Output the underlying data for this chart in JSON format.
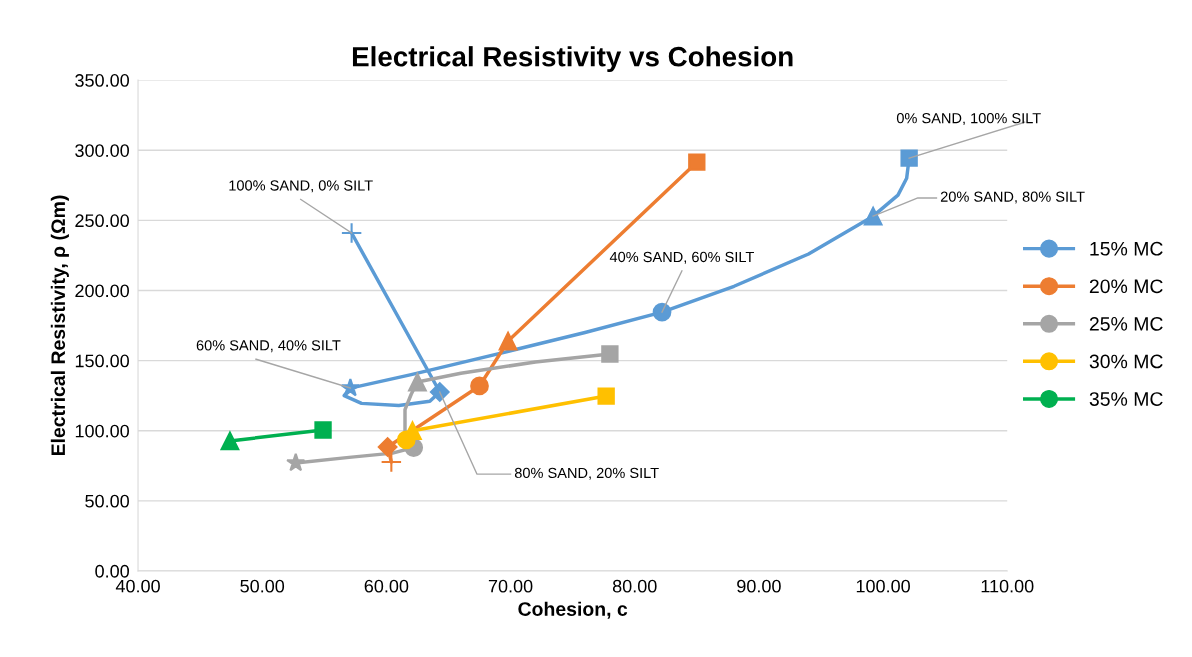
{
  "chart_data": {
    "type": "line",
    "title": "Electrical Resistivity vs Cohesion",
    "xlabel": "Cohesion, c",
    "ylabel": "Electrical Resistivity, ρ (Ωm)",
    "xlim": [
      40,
      110
    ],
    "xticks": [
      {
        "value": 40,
        "label": "40.00"
      },
      {
        "value": 50,
        "label": "50.00"
      },
      {
        "value": 60,
        "label": "60.00"
      },
      {
        "value": 70,
        "label": "70.00"
      },
      {
        "value": 80,
        "label": "80.00"
      },
      {
        "value": 90,
        "label": "90.00"
      },
      {
        "value": 100,
        "label": "100.00"
      },
      {
        "value": 110,
        "label": "110.00"
      }
    ],
    "ylim": [
      0,
      350
    ],
    "yticks": [
      {
        "value": 0,
        "label": "0.00"
      },
      {
        "value": 50,
        "label": "50.00"
      },
      {
        "value": 100,
        "label": "100.00"
      },
      {
        "value": 150,
        "label": "150.00"
      },
      {
        "value": 200,
        "label": "200.00"
      },
      {
        "value": 250,
        "label": "250.00"
      },
      {
        "value": 300,
        "label": "300.00"
      },
      {
        "value": 350,
        "label": "350.00"
      }
    ],
    "grid": "y",
    "legend": "right",
    "line_style": "solid",
    "series": [
      {
        "name": "15% MC",
        "color": "#5b9bd5",
        "marker": "none",
        "x": [
          57.2,
          64.3,
          63.5,
          61,
          58,
          56.6,
          57.1,
          62,
          70,
          76,
          82.2,
          88,
          94,
          99.2,
          101.2,
          101.9,
          102.1
        ],
        "values": [
          241,
          127.6,
          121,
          118,
          119.5,
          125,
          130.4,
          140,
          157,
          170,
          184.6,
          203,
          226,
          253,
          268,
          280,
          294.4
        ]
      },
      {
        "name": "20% MC",
        "color": "#ed7d31",
        "marker": "none",
        "x": [
          60.4,
          60.1,
          67.5,
          69.8,
          85.0
        ],
        "values": [
          77.7,
          88.4,
          131.9,
          163.9,
          291.5
        ]
      },
      {
        "name": "25% MC",
        "color": "#a5a5a5",
        "marker": "none",
        "x": [
          52.7,
          57,
          60.5,
          62.2,
          61.5,
          61.5,
          62,
          62.5,
          66,
          72,
          78.0
        ],
        "values": [
          77,
          81,
          84,
          88,
          100,
          115,
          126,
          134.7,
          141,
          149,
          154.7
        ]
      },
      {
        "name": "30% MC",
        "color": "#ffc000",
        "marker": "none",
        "x": [
          61.6,
          62.1,
          77.7
        ],
        "values": [
          93.4,
          100,
          124.7
        ]
      },
      {
        "name": "35% MC",
        "color": "#00b050",
        "marker": "none",
        "x": [
          47.4,
          54.9
        ],
        "values": [
          92.7,
          100.5
        ]
      },
      {
        "type": "scatter",
        "marker": "cross",
        "colors": [
          "#5b9bd5",
          "#ed7d31"
        ],
        "x": [
          57.2,
          60.4
        ],
        "values": [
          241,
          77.7
        ]
      },
      {
        "type": "scatter",
        "marker": "diamond",
        "colors": [
          "#5b9bd5",
          "#ed7d31"
        ],
        "x": [
          64.3,
          60.1
        ],
        "values": [
          127.6,
          88.4
        ]
      },
      {
        "type": "scatter",
        "marker": "star",
        "colors": [
          "#5b9bd5",
          "#a5a5a5"
        ],
        "x": [
          57.1,
          52.7
        ],
        "values": [
          130.4,
          77
        ]
      },
      {
        "type": "scatter",
        "marker": "circle",
        "colors": [
          "#5b9bd5",
          "#ed7d31",
          "#a5a5a5",
          "#ffc000"
        ],
        "x": [
          82.2,
          67.5,
          62.2,
          61.6
        ],
        "values": [
          184.6,
          131.9,
          88,
          93.4
        ]
      },
      {
        "type": "scatter",
        "marker": "triangle",
        "colors": [
          "#5b9bd5",
          "#ed7d31",
          "#a5a5a5",
          "#ffc000",
          "#00b050"
        ],
        "x": [
          99.2,
          69.8,
          62.5,
          62.1,
          47.4
        ],
        "values": [
          253,
          163.9,
          134.7,
          100,
          92.7
        ]
      },
      {
        "type": "scatter",
        "marker": "square",
        "colors": [
          "#5b9bd5",
          "#ed7d31",
          "#a5a5a5",
          "#ffc000",
          "#00b050"
        ],
        "x": [
          102.1,
          85.0,
          78.0,
          77.7,
          54.9
        ],
        "values": [
          294.4,
          291.5,
          154.7,
          124.7,
          100.5
        ]
      }
    ],
    "annotations": [
      {
        "text": "100% SAND, 0% SILT",
        "x": 57.2,
        "y": 241
      },
      {
        "text": "80% SAND, 20% SILT",
        "x": 64.3,
        "y": 127.6
      },
      {
        "text": "60% SAND, 40% SILT",
        "x": 57.1,
        "y": 130.4
      },
      {
        "text": "40% SAND, 60% SILT",
        "x": 82.2,
        "y": 184.6
      },
      {
        "text": "20% SAND, 80% SILT",
        "x": 99.2,
        "y": 253
      },
      {
        "text": "0% SAND, 100% SILT",
        "x": 102.1,
        "y": 294.4
      }
    ]
  }
}
